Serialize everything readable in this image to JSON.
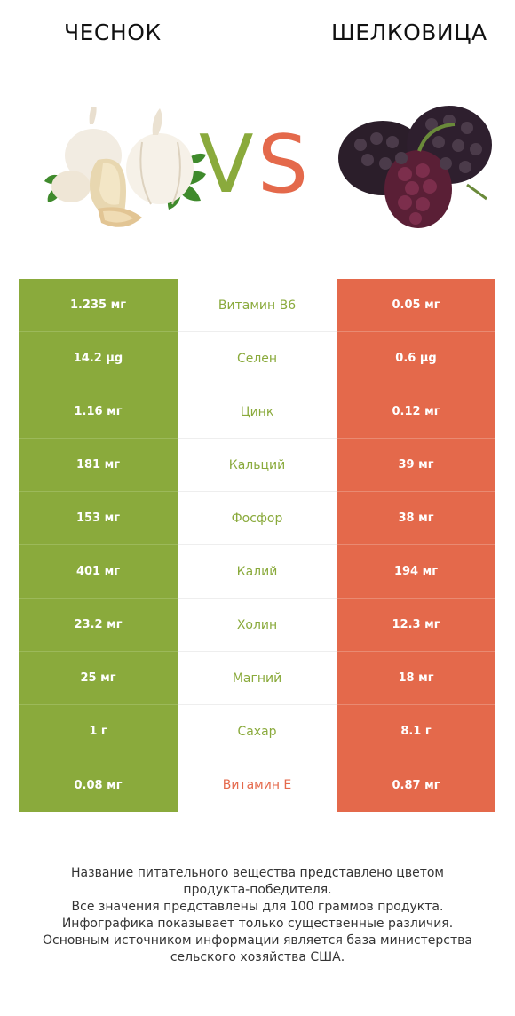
{
  "header": {
    "left_title": "ЧЕСНОК",
    "right_title": "ШЕЛКОВИЦА",
    "vs": "VS"
  },
  "colors": {
    "left_food": "#8aaa3c",
    "right_food": "#e4694b"
  },
  "icons": {
    "left": "garlic-illustration",
    "right": "mulberry-illustration"
  },
  "rows": [
    {
      "left": "1.235 мг",
      "nutrient": "Витамин B6",
      "right": "0.05 мг",
      "winner": "left"
    },
    {
      "left": "14.2 µg",
      "nutrient": "Селен",
      "right": "0.6 µg",
      "winner": "left"
    },
    {
      "left": "1.16 мг",
      "nutrient": "Цинк",
      "right": "0.12 мг",
      "winner": "left"
    },
    {
      "left": "181 мг",
      "nutrient": "Кальций",
      "right": "39 мг",
      "winner": "left"
    },
    {
      "left": "153 мг",
      "nutrient": "Фосфор",
      "right": "38 мг",
      "winner": "left"
    },
    {
      "left": "401 мг",
      "nutrient": "Калий",
      "right": "194 мг",
      "winner": "left"
    },
    {
      "left": "23.2 мг",
      "nutrient": "Холин",
      "right": "12.3 мг",
      "winner": "left"
    },
    {
      "left": "25 мг",
      "nutrient": "Магний",
      "right": "18 мг",
      "winner": "left"
    },
    {
      "left": "1 г",
      "nutrient": "Сахар",
      "right": "8.1 г",
      "winner": "left"
    },
    {
      "left": "0.08 мг",
      "nutrient": "Витамин E",
      "right": "0.87 мг",
      "winner": "right"
    }
  ],
  "footnote": [
    "Название питательного вещества представлено цветом",
    "продукта-победителя.",
    "Все значения представлены для 100 граммов продукта.",
    "Инфографика показывает только существенные различия.",
    "Основным источником информации является база министерства",
    "сельского хозяйства США."
  ]
}
